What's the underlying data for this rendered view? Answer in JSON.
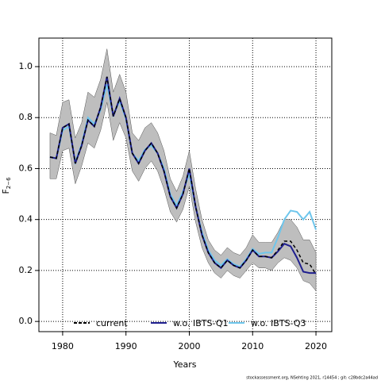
{
  "chart_data": {
    "type": "line",
    "xlabel": "Years",
    "ylabel": "F",
    "ylabel_sub": "2−6",
    "footer": "stockassessment.org, NSehting 2021, r14454 ; git: c28bdc2a44ad",
    "x": [
      1978,
      1979,
      1980,
      1981,
      1982,
      1983,
      1984,
      1985,
      1986,
      1987,
      1988,
      1989,
      1990,
      1991,
      1992,
      1993,
      1994,
      1995,
      1996,
      1997,
      1998,
      1999,
      2000,
      2001,
      2002,
      2003,
      2004,
      2005,
      2006,
      2007,
      2008,
      2009,
      2010,
      2011,
      2012,
      2013,
      2014,
      2015,
      2016,
      2017,
      2018,
      2019,
      2020
    ],
    "band": {
      "color": "#bebebe",
      "upper": [
        0.74,
        0.73,
        0.86,
        0.87,
        0.72,
        0.78,
        0.9,
        0.88,
        0.95,
        1.07,
        0.9,
        0.97,
        0.9,
        0.74,
        0.71,
        0.76,
        0.78,
        0.74,
        0.67,
        0.56,
        0.51,
        0.57,
        0.67,
        0.52,
        0.4,
        0.32,
        0.28,
        0.26,
        0.29,
        0.27,
        0.26,
        0.29,
        0.34,
        0.31,
        0.31,
        0.31,
        0.35,
        0.4,
        0.4,
        0.37,
        0.32,
        0.32,
        0.27
      ],
      "lower": [
        0.56,
        0.56,
        0.67,
        0.68,
        0.54,
        0.61,
        0.7,
        0.68,
        0.75,
        0.86,
        0.71,
        0.78,
        0.72,
        0.59,
        0.55,
        0.6,
        0.63,
        0.59,
        0.52,
        0.43,
        0.39,
        0.44,
        0.53,
        0.39,
        0.29,
        0.23,
        0.19,
        0.17,
        0.2,
        0.18,
        0.17,
        0.2,
        0.23,
        0.21,
        0.21,
        0.2,
        0.23,
        0.25,
        0.24,
        0.21,
        0.16,
        0.15,
        0.12
      ]
    },
    "series": [
      {
        "name": "current",
        "color": "#000000",
        "dashed": true,
        "values": [
          0.645,
          0.64,
          0.76,
          0.775,
          0.62,
          0.69,
          0.79,
          0.765,
          0.84,
          0.96,
          0.805,
          0.875,
          0.8,
          0.66,
          0.62,
          0.67,
          0.7,
          0.66,
          0.59,
          0.49,
          0.445,
          0.5,
          0.6,
          0.45,
          0.34,
          0.27,
          0.23,
          0.21,
          0.24,
          0.22,
          0.21,
          0.24,
          0.28,
          0.255,
          0.255,
          0.25,
          0.28,
          0.315,
          0.315,
          0.28,
          0.23,
          0.225,
          0.185
        ]
      },
      {
        "name": "w.o. IBTS-Q1",
        "color": "#1f1f8f",
        "dashed": false,
        "values": [
          0.645,
          0.64,
          0.76,
          0.775,
          0.62,
          0.69,
          0.79,
          0.765,
          0.84,
          0.96,
          0.805,
          0.875,
          0.8,
          0.66,
          0.62,
          0.67,
          0.7,
          0.66,
          0.59,
          0.49,
          0.445,
          0.5,
          0.6,
          0.45,
          0.34,
          0.27,
          0.23,
          0.21,
          0.24,
          0.22,
          0.21,
          0.24,
          0.28,
          0.255,
          0.255,
          0.25,
          0.275,
          0.305,
          0.295,
          0.25,
          0.195,
          0.19,
          0.19
        ]
      },
      {
        "name": "w.o. IBTS-Q3",
        "color": "#6ec6ec",
        "dashed": false,
        "values": [
          0.645,
          0.64,
          0.75,
          0.765,
          0.625,
          0.695,
          0.8,
          0.775,
          0.83,
          0.93,
          0.81,
          0.865,
          0.795,
          0.66,
          0.63,
          0.675,
          0.69,
          0.66,
          0.6,
          0.5,
          0.455,
          0.51,
          0.58,
          0.45,
          0.35,
          0.28,
          0.24,
          0.22,
          0.245,
          0.225,
          0.215,
          0.245,
          0.285,
          0.265,
          0.27,
          0.27,
          0.33,
          0.4,
          0.435,
          0.43,
          0.4,
          0.43,
          0.36
        ]
      }
    ],
    "xlim": [
      1976.25,
      2022.5
    ],
    "xticks": [
      1980,
      1990,
      2000,
      2010,
      2020
    ],
    "ylim": [
      -0.04,
      1.112
    ],
    "yticks": [
      {
        "value": 0,
        "label": "0.0"
      },
      0.2,
      0.4,
      0.6,
      0.8,
      {
        "value": 1,
        "label": "1.0"
      }
    ],
    "grid": true,
    "legend": "bottom"
  }
}
